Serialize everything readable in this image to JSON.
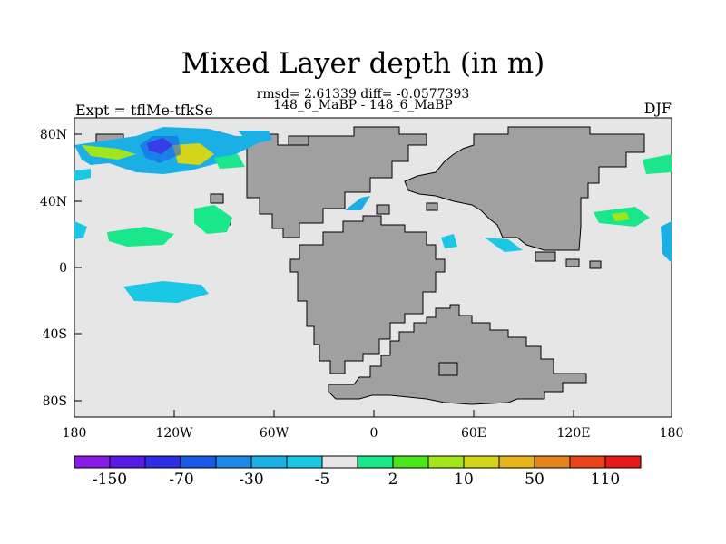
{
  "title": "Mixed Layer depth (in m)",
  "stats": "rmsd= 2.61339 diff= -0.0577393",
  "subtitle": "148_6_MaBP - 148_6_MaBP",
  "expt_label": "Expt = tflMe-tfkSe",
  "season": "DJF",
  "map": {
    "x_ticks": [
      "180",
      "120W",
      "60W",
      "0",
      "60E",
      "120E",
      "180"
    ],
    "y_ticks": [
      "80N",
      "40N",
      "0",
      "40S",
      "80S"
    ],
    "land_color": "#a0a0a0",
    "ocean_color": "#e6e6e6"
  },
  "colorbar": {
    "labels": [
      "-150",
      "-70",
      "-30",
      "-5",
      "2",
      "10",
      "50",
      "110"
    ],
    "colors": [
      "#8a1ae6",
      "#5a1ae6",
      "#2e2ee6",
      "#1a5ae6",
      "#1a8ae6",
      "#1ab0e6",
      "#1ac8e6",
      "#e6e6e6",
      "#1ae68a",
      "#4ae61a",
      "#a0e61a",
      "#d4d41a",
      "#e6b41a",
      "#e6821a",
      "#e6461a",
      "#e61a1a"
    ]
  }
}
